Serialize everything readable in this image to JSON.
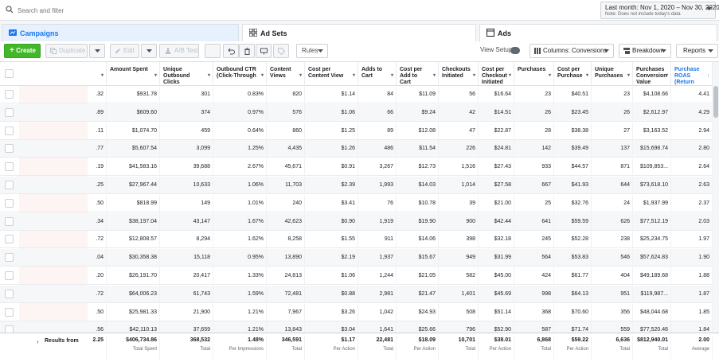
{
  "search": {
    "placeholder": "Search and filter"
  },
  "date_range": {
    "label": "Last month: Nov 1, 2020 – Nov 30, 2020",
    "note": "Note: Does not include today's data"
  },
  "tabs": {
    "campaigns": "Campaigns",
    "ad_sets": "Ad Sets",
    "ads": "Ads"
  },
  "toolbar": {
    "create": "Create",
    "duplicate": "Duplicate",
    "edit": "Edit",
    "ab_test": "A/B Test",
    "rules": "Rules",
    "view_setup": "View Setup",
    "columns": "Columns: Conversions",
    "breakdown": "Breakdown",
    "reports": "Reports"
  },
  "columns": [
    {
      "label": "",
      "partial": true
    },
    {
      "label": "Amount Spent"
    },
    {
      "label": "Unique Outbound Clicks"
    },
    {
      "label": "Outbound CTR (Click-Through"
    },
    {
      "label": "Content Views"
    },
    {
      "label": "Cost per Content View"
    },
    {
      "label": "Adds to Cart"
    },
    {
      "label": "Cost per Add to Cart"
    },
    {
      "label": "Checkouts Initiated"
    },
    {
      "label": "Cost per Checkout Initiated"
    },
    {
      "label": "Purchases"
    },
    {
      "label": "Cost per Purchase"
    },
    {
      "label": "Unique Purchases"
    },
    {
      "label": "Purchases Conversion Value"
    },
    {
      "label": "Purchase ROAS (Return",
      "sorted": true
    }
  ],
  "rows": [
    [
      ".32",
      "$931.78",
      "301",
      "0.83%",
      "820",
      "$1.14",
      "84",
      "$11.09",
      "56",
      "$16.64",
      "23",
      "$40.51",
      "23",
      "$4,108.66",
      "4.41"
    ],
    [
      ".89",
      "$609.60",
      "374",
      "0.97%",
      "576",
      "$1.06",
      "66",
      "$9.24",
      "42",
      "$14.51",
      "26",
      "$23.45",
      "26",
      "$2,612.97",
      "4.29"
    ],
    [
      ".11",
      "$1,074.70",
      "459",
      "0.64%",
      "860",
      "$1.25",
      "89",
      "$12.08",
      "47",
      "$22.87",
      "28",
      "$38.38",
      "27",
      "$3,163.52",
      "2.94"
    ],
    [
      ".77",
      "$5,607.54",
      "3,099",
      "1.25%",
      "4,435",
      "$1.26",
      "486",
      "$11.54",
      "226",
      "$24.81",
      "142",
      "$39.49",
      "137",
      "$15,698.74",
      "2.80"
    ],
    [
      ".19",
      "$41,583.16",
      "39,688",
      "2.67%",
      "45,671",
      "$0.91",
      "3,267",
      "$12.73",
      "1,516",
      "$27.43",
      "933",
      "$44.57",
      "871",
      "$109,853...",
      "2.64"
    ],
    [
      ".25",
      "$27,967.44",
      "10,633",
      "1.06%",
      "11,703",
      "$2.39",
      "1,993",
      "$14.03",
      "1,014",
      "$27.58",
      "667",
      "$41.93",
      "644",
      "$73,618.10",
      "2.63"
    ],
    [
      ".50",
      "$818.99",
      "149",
      "1.01%",
      "240",
      "$3.41",
      "76",
      "$10.78",
      "39",
      "$21.00",
      "25",
      "$32.76",
      "24",
      "$1,937.99",
      "2.37"
    ],
    [
      ".34",
      "$38,197.04",
      "43,147",
      "1.67%",
      "42,623",
      "$0.90",
      "1,919",
      "$19.90",
      "900",
      "$42.44",
      "641",
      "$59.59",
      "626",
      "$77,512.19",
      "2.03"
    ],
    [
      ".72",
      "$12,808.57",
      "8,294",
      "1.62%",
      "8,258",
      "$1.55",
      "911",
      "$14.06",
      "398",
      "$32.18",
      "245",
      "$52.28",
      "238",
      "$25,234.75",
      "1.97"
    ],
    [
      ".04",
      "$30,358.38",
      "15,118",
      "0.95%",
      "13,890",
      "$2.19",
      "1,937",
      "$15.67",
      "949",
      "$31.99",
      "564",
      "$53.83",
      "546",
      "$57,624.83",
      "1.90"
    ],
    [
      ".20",
      "$26,191.70",
      "20,417",
      "1.33%",
      "24,813",
      "$1.06",
      "1,244",
      "$21.05",
      "582",
      "$45.00",
      "424",
      "$61.77",
      "404",
      "$49,189.68",
      "1.88"
    ],
    [
      ".72",
      "$64,006.23",
      "61,743",
      "1.59%",
      "72,481",
      "$0.88",
      "2,981",
      "$21.47",
      "1,401",
      "$45.69",
      "998",
      "$64.13",
      "951",
      "$119,987...",
      "1.87"
    ],
    [
      ".50",
      "$25,981.33",
      "21,900",
      "1.21%",
      "7,967",
      "$3.26",
      "1,042",
      "$24.93",
      "508",
      "$51.14",
      "368",
      "$70.60",
      "356",
      "$48,044.68",
      "1.85"
    ],
    [
      ".56",
      "$42,110.13",
      "37,659",
      "1.21%",
      "13,843",
      "$3.04",
      "1,641",
      "$25.66",
      "796",
      "$52.90",
      "587",
      "$71.74",
      "559",
      "$77,520.46",
      "1.84"
    ]
  ],
  "footer": {
    "label": "Results from",
    "cells": [
      {
        "value": "2.25",
        "sub": ""
      },
      {
        "value": "$406,734.86",
        "sub": "Total Spent"
      },
      {
        "value": "368,532",
        "sub": "Total"
      },
      {
        "value": "1.48%",
        "sub": "Per Impressions"
      },
      {
        "value": "346,591",
        "sub": "Total"
      },
      {
        "value": "$1.17",
        "sub": "Per Action"
      },
      {
        "value": "22,481",
        "sub": "Total"
      },
      {
        "value": "$18.09",
        "sub": "Per Action"
      },
      {
        "value": "10,701",
        "sub": "Total"
      },
      {
        "value": "$38.01",
        "sub": "Per Action"
      },
      {
        "value": "6,868",
        "sub": "Total"
      },
      {
        "value": "$59.22",
        "sub": "Per Action"
      },
      {
        "value": "6,636",
        "sub": "Total"
      },
      {
        "value": "$812,940.01",
        "sub": "Total"
      },
      {
        "value": "2.00",
        "sub": "Average"
      }
    ]
  },
  "colors": {
    "accent": "#1877f2",
    "create": "#42b72a"
  }
}
